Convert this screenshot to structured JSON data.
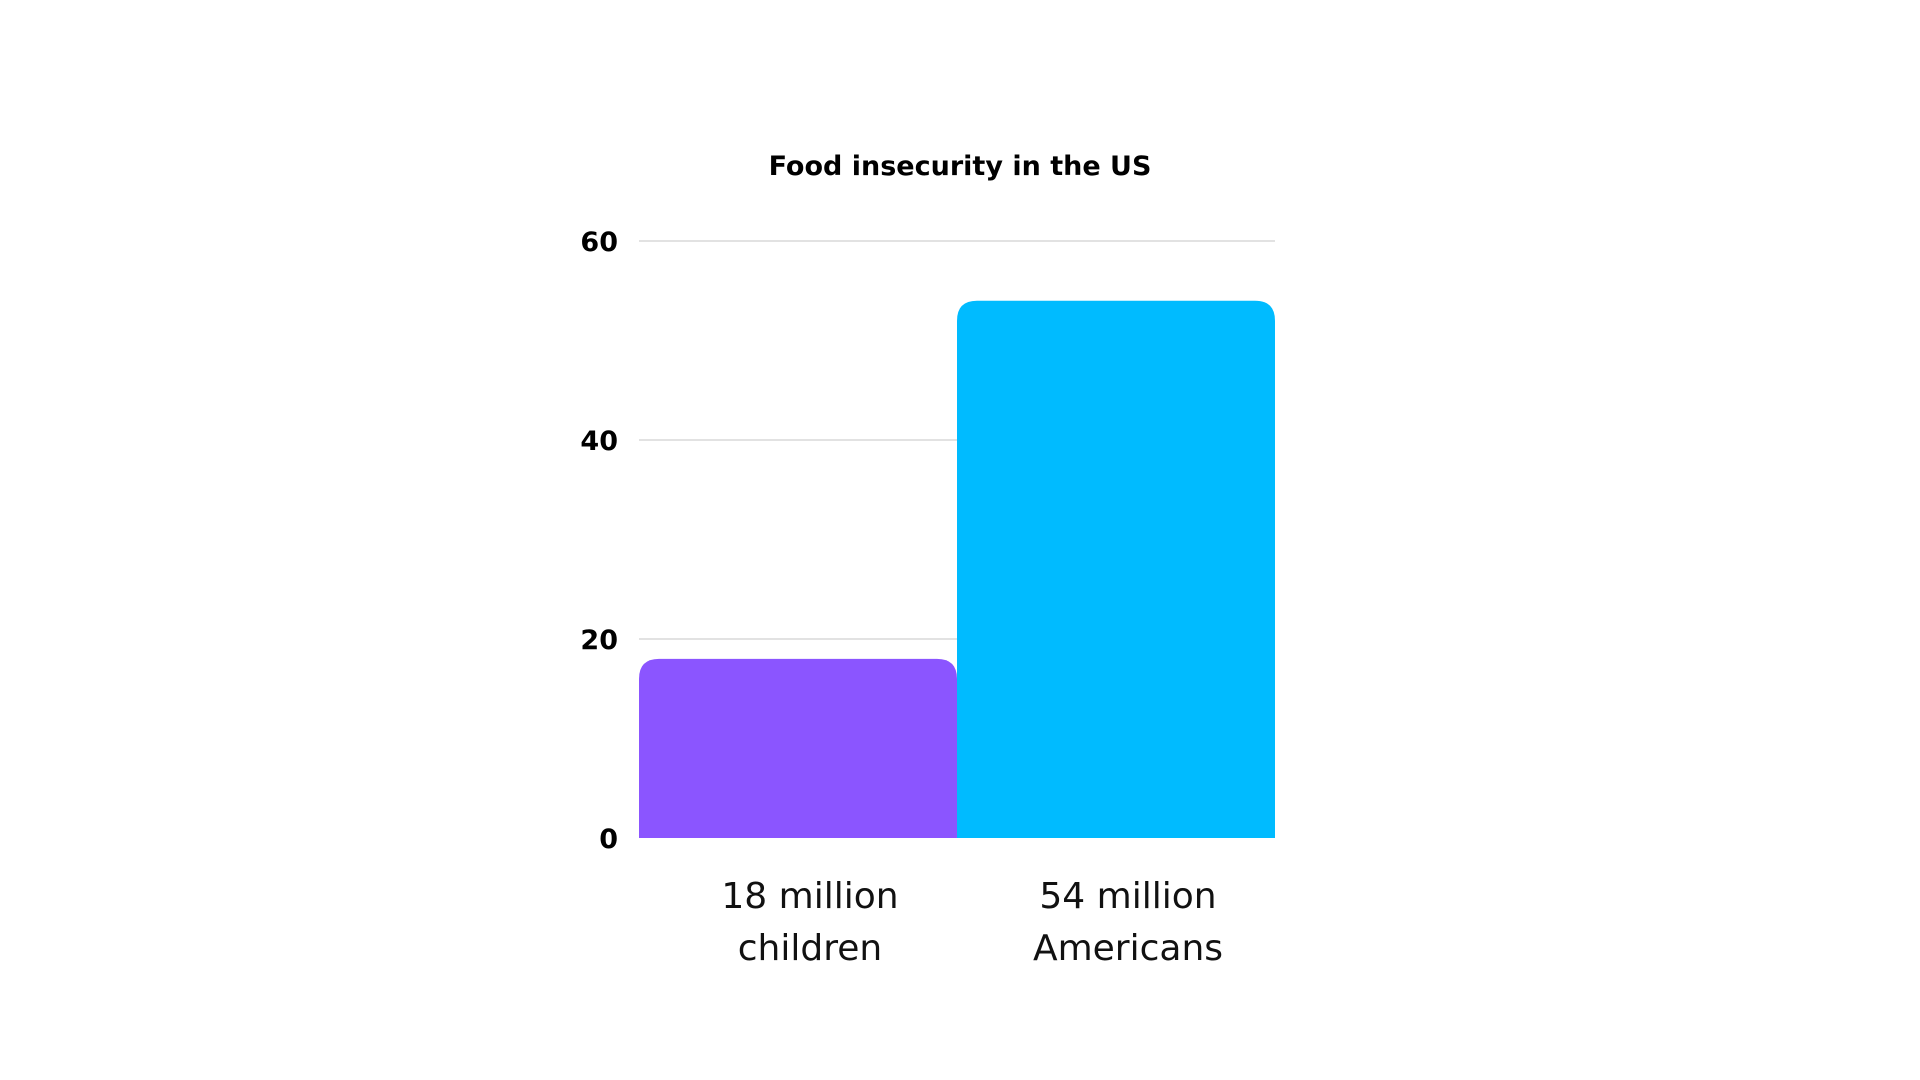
{
  "chart_data": {
    "type": "bar",
    "title": "Food insecurity in the US",
    "categories": [
      "18 million children",
      "54 million Americans"
    ],
    "category_lines": [
      [
        "18 million",
        "children"
      ],
      [
        "54 million",
        "Americans"
      ]
    ],
    "values": [
      18,
      54
    ],
    "colors": [
      "#8b55ff",
      "#00bbff"
    ],
    "ylim": [
      0,
      60
    ],
    "yticks": [
      0,
      20,
      40,
      60
    ],
    "grid": true,
    "legend": "none",
    "xlabel": "",
    "ylabel": ""
  }
}
